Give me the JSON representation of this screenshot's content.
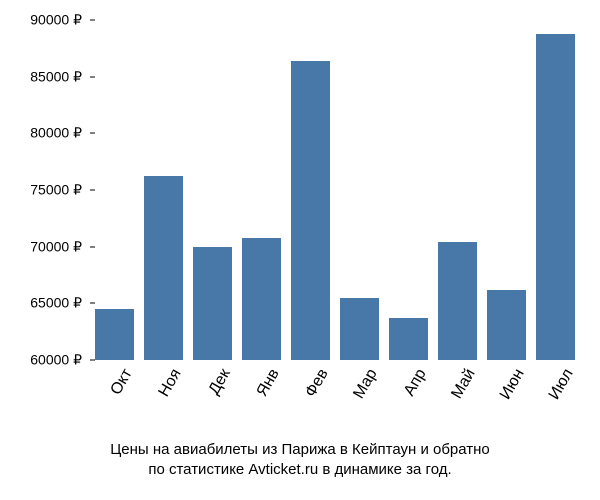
{
  "chart": {
    "type": "bar",
    "categories": [
      "Окт",
      "Ноя",
      "Дек",
      "Янв",
      "Фев",
      "Мар",
      "Апр",
      "Май",
      "Июн",
      "Июл"
    ],
    "values": [
      64500,
      76200,
      70000,
      70800,
      86400,
      65500,
      63700,
      70400,
      66200,
      88800
    ],
    "bar_color": "#4878a7",
    "ylim": [
      60000,
      90000
    ],
    "ytick_step": 5000,
    "ytick_labels": [
      "60000 ₽",
      "65000 ₽",
      "70000 ₽",
      "75000 ₽",
      "80000 ₽",
      "85000 ₽",
      "90000 ₽"
    ],
    "background_color": "#ffffff",
    "text_color": "#000000",
    "xlabel_rotation_deg": -60,
    "bar_width_ratio": 0.78,
    "tick_label_fontsize": 14,
    "category_label_fontsize": 16,
    "caption_fontsize": 15
  },
  "caption": {
    "line1": "Цены на авиабилеты из Парижа в Кейптаун и обратно",
    "line2": "по статистике Avticket.ru в динамике за год."
  }
}
